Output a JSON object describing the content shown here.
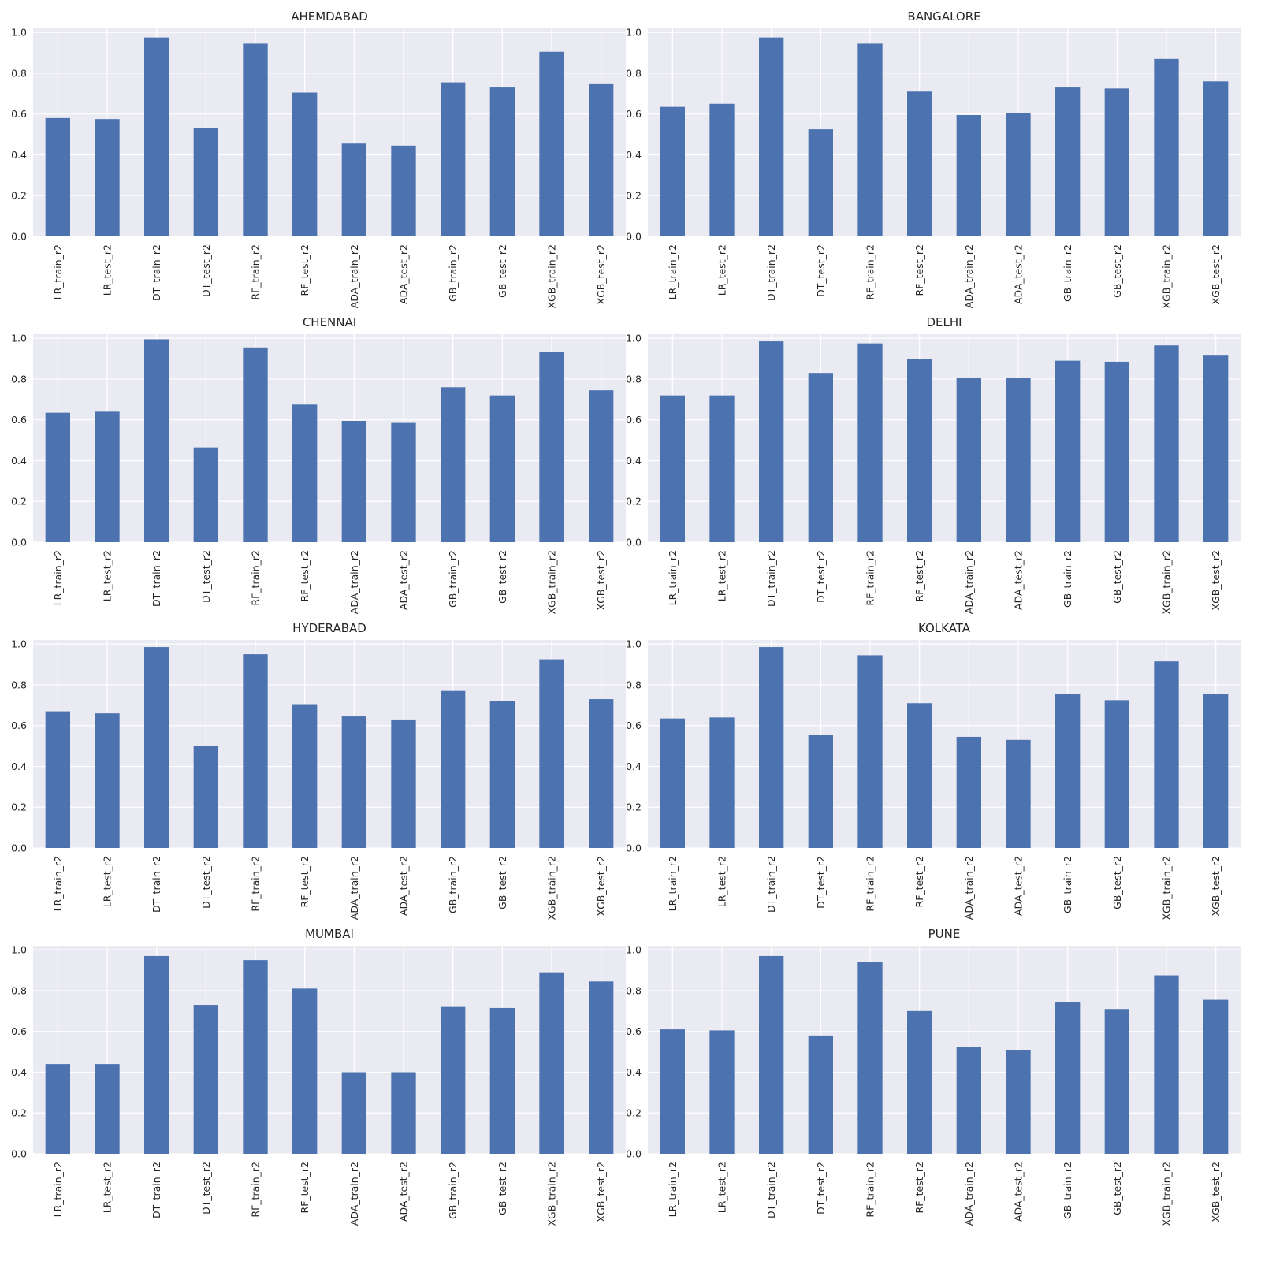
{
  "style": {
    "background": "#ffffff",
    "axes_facecolor": "#eaeaf2",
    "grid_color": "#ffffff",
    "bar_color": "#4c72b0"
  },
  "layout": {
    "rows": 4,
    "cols": 2
  },
  "chart_data": [
    {
      "type": "bar",
      "title": "AHEMDABAD",
      "xlabel": "",
      "ylabel": "",
      "grid": true,
      "ylim": [
        0,
        1.02
      ],
      "yticks": [
        0.0,
        0.2,
        0.4,
        0.6,
        0.8,
        1.0
      ],
      "categories": [
        "LR_train_r2",
        "LR_test_r2",
        "DT_train_r2",
        "DT_test_r2",
        "RF_train_r2",
        "RF_test_r2",
        "ADA_train_r2",
        "ADA_test_r2",
        "GB_train_r2",
        "GB_test_r2",
        "XGB_train_r2",
        "XGB_test_r2"
      ],
      "values": [
        0.58,
        0.575,
        0.975,
        0.53,
        0.945,
        0.705,
        0.455,
        0.445,
        0.755,
        0.73,
        0.905,
        0.75
      ]
    },
    {
      "type": "bar",
      "title": "BANGALORE",
      "xlabel": "",
      "ylabel": "",
      "grid": true,
      "ylim": [
        0,
        1.02
      ],
      "yticks": [
        0.0,
        0.2,
        0.4,
        0.6,
        0.8,
        1.0
      ],
      "categories": [
        "LR_train_r2",
        "LR_test_r2",
        "DT_train_r2",
        "DT_test_r2",
        "RF_train_r2",
        "RF_test_r2",
        "ADA_train_r2",
        "ADA_test_r2",
        "GB_train_r2",
        "GB_test_r2",
        "XGB_train_r2",
        "XGB_test_r2"
      ],
      "values": [
        0.635,
        0.65,
        0.975,
        0.525,
        0.945,
        0.71,
        0.595,
        0.605,
        0.73,
        0.725,
        0.87,
        0.76
      ]
    },
    {
      "type": "bar",
      "title": "CHENNAI",
      "xlabel": "",
      "ylabel": "",
      "grid": true,
      "ylim": [
        0,
        1.02
      ],
      "yticks": [
        0.0,
        0.2,
        0.4,
        0.6,
        0.8,
        1.0
      ],
      "categories": [
        "LR_train_r2",
        "LR_test_r2",
        "DT_train_r2",
        "DT_test_r2",
        "RF_train_r2",
        "RF_test_r2",
        "ADA_train_r2",
        "ADA_test_r2",
        "GB_train_r2",
        "GB_test_r2",
        "XGB_train_r2",
        "XGB_test_r2"
      ],
      "values": [
        0.635,
        0.64,
        0.995,
        0.465,
        0.955,
        0.675,
        0.595,
        0.585,
        0.76,
        0.72,
        0.935,
        0.745
      ]
    },
    {
      "type": "bar",
      "title": "DELHI",
      "xlabel": "",
      "ylabel": "",
      "grid": true,
      "ylim": [
        0,
        1.02
      ],
      "yticks": [
        0.0,
        0.2,
        0.4,
        0.6,
        0.8,
        1.0
      ],
      "categories": [
        "LR_train_r2",
        "LR_test_r2",
        "DT_train_r2",
        "DT_test_r2",
        "RF_train_r2",
        "RF_test_r2",
        "ADA_train_r2",
        "ADA_test_r2",
        "GB_train_r2",
        "GB_test_r2",
        "XGB_train_r2",
        "XGB_test_r2"
      ],
      "values": [
        0.72,
        0.72,
        0.985,
        0.83,
        0.975,
        0.9,
        0.805,
        0.805,
        0.89,
        0.885,
        0.965,
        0.915
      ]
    },
    {
      "type": "bar",
      "title": "HYDERABAD",
      "xlabel": "",
      "ylabel": "",
      "grid": true,
      "ylim": [
        0,
        1.02
      ],
      "yticks": [
        0.0,
        0.2,
        0.4,
        0.6,
        0.8,
        1.0
      ],
      "categories": [
        "LR_train_r2",
        "LR_test_r2",
        "DT_train_r2",
        "DT_test_r2",
        "RF_train_r2",
        "RF_test_r2",
        "ADA_train_r2",
        "ADA_test_r2",
        "GB_train_r2",
        "GB_test_r2",
        "XGB_train_r2",
        "XGB_test_r2"
      ],
      "values": [
        0.67,
        0.66,
        0.985,
        0.5,
        0.95,
        0.705,
        0.645,
        0.63,
        0.77,
        0.72,
        0.925,
        0.73
      ]
    },
    {
      "type": "bar",
      "title": "KOLKATA",
      "xlabel": "",
      "ylabel": "",
      "grid": true,
      "ylim": [
        0,
        1.02
      ],
      "yticks": [
        0.0,
        0.2,
        0.4,
        0.6,
        0.8,
        1.0
      ],
      "categories": [
        "LR_train_r2",
        "LR_test_r2",
        "DT_train_r2",
        "DT_test_r2",
        "RF_train_r2",
        "RF_test_r2",
        "ADA_train_r2",
        "ADA_test_r2",
        "GB_train_r2",
        "GB_test_r2",
        "XGB_train_r2",
        "XGB_test_r2"
      ],
      "values": [
        0.635,
        0.64,
        0.985,
        0.555,
        0.945,
        0.71,
        0.545,
        0.53,
        0.755,
        0.725,
        0.915,
        0.755
      ]
    },
    {
      "type": "bar",
      "title": "MUMBAI",
      "xlabel": "",
      "ylabel": "",
      "grid": true,
      "ylim": [
        0,
        1.02
      ],
      "yticks": [
        0.0,
        0.2,
        0.4,
        0.6,
        0.8,
        1.0
      ],
      "categories": [
        "LR_train_r2",
        "LR_test_r2",
        "DT_train_r2",
        "DT_test_r2",
        "RF_train_r2",
        "RF_test_r2",
        "ADA_train_r2",
        "ADA_test_r2",
        "GB_train_r2",
        "GB_test_r2",
        "XGB_train_r2",
        "XGB_test_r2"
      ],
      "values": [
        0.44,
        0.44,
        0.97,
        0.73,
        0.95,
        0.81,
        0.4,
        0.4,
        0.72,
        0.715,
        0.89,
        0.845
      ]
    },
    {
      "type": "bar",
      "title": "PUNE",
      "xlabel": "",
      "ylabel": "",
      "grid": true,
      "ylim": [
        0,
        1.02
      ],
      "yticks": [
        0.0,
        0.2,
        0.4,
        0.6,
        0.8,
        1.0
      ],
      "categories": [
        "LR_train_r2",
        "LR_test_r2",
        "DT_train_r2",
        "DT_test_r2",
        "RF_train_r2",
        "RF_test_r2",
        "ADA_train_r2",
        "ADA_test_r2",
        "GB_train_r2",
        "GB_test_r2",
        "XGB_train_r2",
        "XGB_test_r2"
      ],
      "values": [
        0.61,
        0.605,
        0.97,
        0.58,
        0.94,
        0.7,
        0.525,
        0.51,
        0.745,
        0.71,
        0.875,
        0.755
      ]
    }
  ]
}
